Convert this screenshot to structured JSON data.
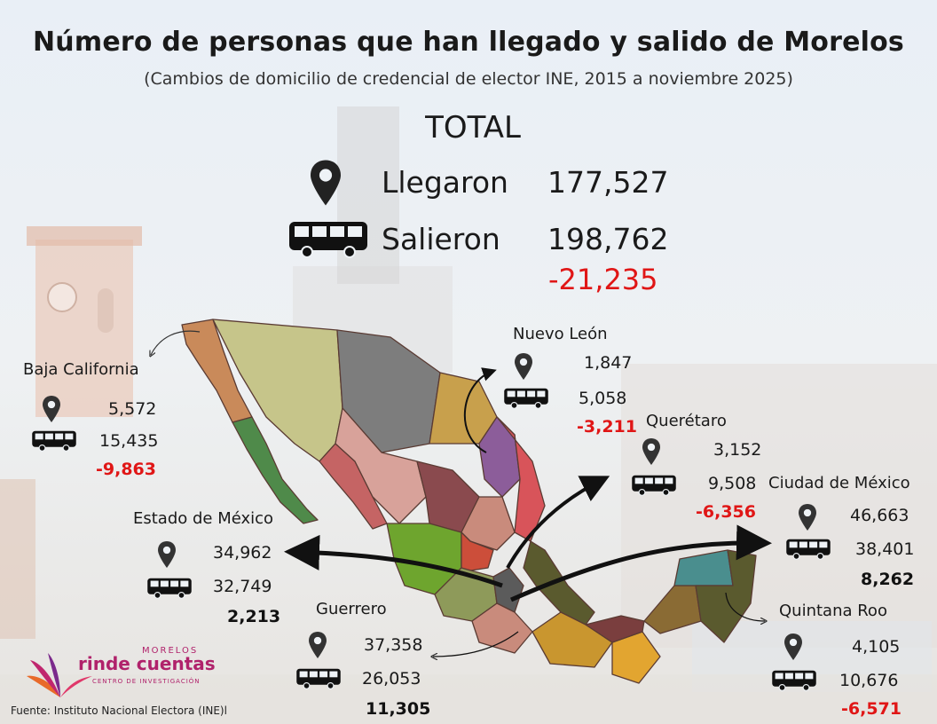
{
  "title": "Número de personas que han llegado y salido de Morelos",
  "subtitle": "(Cambios de domicilio de credencial de elector INE, 2015 a noviembre 2025)",
  "total": {
    "label": "TOTAL",
    "arrived_label": "Llegaron",
    "arrived": "177,527",
    "left_label": "Salieron",
    "left": "198,762",
    "balance": "-21,235"
  },
  "states": {
    "baja_california": {
      "name": "Baja California",
      "arrived": "5,572",
      "left": "15,435",
      "balance": "-9,863"
    },
    "nuevo_leon": {
      "name": "Nuevo León",
      "arrived": "1,847",
      "left": "5,058",
      "balance": "-3,211"
    },
    "queretaro": {
      "name": "Querétaro",
      "arrived": "3,152",
      "left": "9,508",
      "balance": "-6,356"
    },
    "cdmx": {
      "name": "Ciudad de México",
      "arrived": "46,663",
      "left": "38,401",
      "balance": "8,262"
    },
    "edomex": {
      "name": "Estado de México",
      "arrived": "34,962",
      "left": "32,749",
      "balance": "2,213"
    },
    "guerrero": {
      "name": "Guerrero",
      "arrived": "37,358",
      "left": "26,053",
      "balance": "11,305"
    },
    "quintana_roo": {
      "name": "Quintana Roo",
      "arrived": "4,105",
      "left": "10,676",
      "balance": "-6,571"
    }
  },
  "logo": {
    "top": "MORELOS",
    "main": "rinde cuentas",
    "sub": "CENTRO DE INVESTIGACIÓN"
  },
  "source": "Fuente: Instituto Nacional Electora (INE)l",
  "colors": {
    "negative": "#e01616",
    "text": "#1a1a1a",
    "logo": "#b0226b"
  },
  "icons": [
    "map-pin-icon",
    "bus-icon"
  ]
}
